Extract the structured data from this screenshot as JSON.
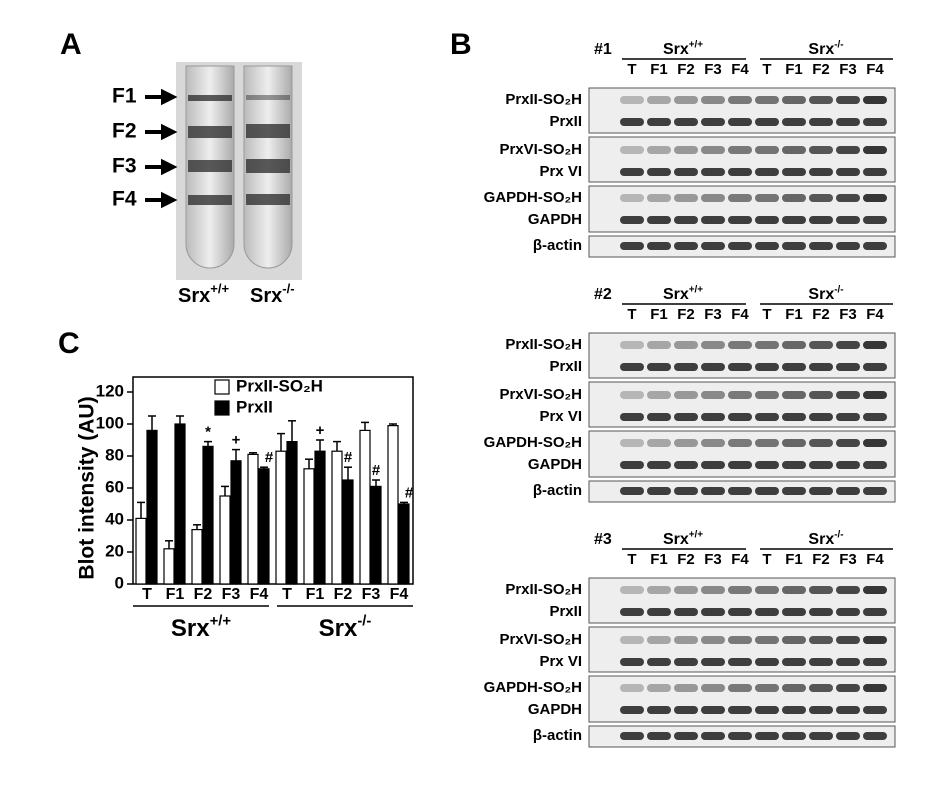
{
  "panels": {
    "a": {
      "letter": "A",
      "fractions": [
        "F1",
        "F2",
        "F3",
        "F4"
      ],
      "tubes": [
        {
          "base": "Srx",
          "sup": "+/+"
        },
        {
          "base": "Srx",
          "sup": "-/-"
        }
      ]
    },
    "b": {
      "letter": "B",
      "blots": [
        {
          "id": "#1",
          "groups": [
            {
              "base": "Srx",
              "sup": "+/+"
            },
            {
              "base": "Srx",
              "sup": "-/-"
            }
          ],
          "lanes": [
            "T",
            "F1",
            "F2",
            "F3",
            "F4",
            "T",
            "F1",
            "F2",
            "F3",
            "F4"
          ],
          "rows": [
            "PrxII-SO₂H",
            "PrxII",
            "PrxVI-SO₂H",
            "Prx VI",
            "GAPDH-SO₂H",
            "GAPDH",
            "β-actin"
          ]
        },
        {
          "id": "#2",
          "groups": [
            {
              "base": "Srx",
              "sup": "+/+"
            },
            {
              "base": "Srx",
              "sup": "-/-"
            }
          ],
          "lanes": [
            "T",
            "F1",
            "F2",
            "F3",
            "F4",
            "T",
            "F1",
            "F2",
            "F3",
            "F4"
          ],
          "rows": [
            "PrxII-SO₂H",
            "PrxII",
            "PrxVI-SO₂H",
            "Prx VI",
            "GAPDH-SO₂H",
            "GAPDH",
            "β-actin"
          ]
        },
        {
          "id": "#3",
          "groups": [
            {
              "base": "Srx",
              "sup": "+/+"
            },
            {
              "base": "Srx",
              "sup": "-/-"
            }
          ],
          "lanes": [
            "T",
            "F1",
            "F2",
            "F3",
            "F4",
            "T",
            "F1",
            "F2",
            "F3",
            "F4"
          ],
          "rows": [
            "PrxII-SO₂H",
            "PrxII",
            "PrxVI-SO₂H",
            "Prx VI",
            "GAPDH-SO₂H",
            "GAPDH",
            "β-actin"
          ]
        }
      ]
    },
    "c": {
      "letter": "C"
    }
  },
  "chart_data": {
    "type": "bar",
    "ylabel": "Blot intensity (AU)",
    "categories": [
      "T",
      "F1",
      "F2",
      "F3",
      "F4",
      "T",
      "F1",
      "F2",
      "F3",
      "F4"
    ],
    "groups": [
      {
        "base": "Srx",
        "sup": "+/+"
      },
      {
        "base": "Srx",
        "sup": "-/-"
      }
    ],
    "ylim": [
      0,
      120
    ],
    "yticks": [
      0,
      20,
      40,
      60,
      80,
      100,
      120
    ],
    "series": [
      {
        "name": "PrxII-SO₂H",
        "color": "#ffffff",
        "values": [
          41,
          22,
          34,
          55,
          81,
          83,
          72,
          83,
          96,
          99
        ],
        "errors": [
          10,
          5,
          3,
          6,
          1,
          11,
          6,
          6,
          5,
          1
        ],
        "significance": [
          null,
          null,
          null,
          null,
          null,
          null,
          null,
          null,
          null,
          null
        ]
      },
      {
        "name": "PrxII",
        "color": "#000000",
        "values": [
          96,
          100,
          86,
          77,
          72,
          89,
          83,
          65,
          61,
          50
        ],
        "errors": [
          9,
          5,
          3,
          7,
          1,
          13,
          7,
          8,
          4,
          1
        ],
        "significance": [
          null,
          null,
          "*",
          "+",
          "#",
          null,
          "+",
          "#",
          "#",
          "#"
        ]
      }
    ]
  }
}
